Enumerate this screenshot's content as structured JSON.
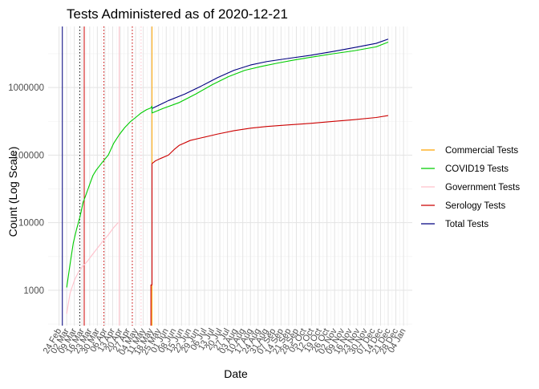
{
  "chart_data": {
    "type": "line",
    "title": "Tests Administered as of 2020-12-21",
    "xlabel": "Date",
    "ylabel": "Count (Log Scale)",
    "y_scale": "log10",
    "ylim": [
      300,
      8000000
    ],
    "y_ticks": [
      {
        "value": 1000,
        "label": "1000"
      },
      {
        "value": 10000,
        "label": "10000"
      },
      {
        "value": 100000,
        "label": "100000"
      },
      {
        "value": 1000000,
        "label": "1000000"
      }
    ],
    "x_range_days": [
      -10,
      323
    ],
    "x_ticks": [
      {
        "day": 0,
        "label": "24 Feb"
      },
      {
        "day": 7,
        "label": "02 Mar"
      },
      {
        "day": 14,
        "label": "09 Mar"
      },
      {
        "day": 21,
        "label": "16 Mar"
      },
      {
        "day": 28,
        "label": "23 Mar"
      },
      {
        "day": 35,
        "label": "30 Mar"
      },
      {
        "day": 42,
        "label": "06 Apr"
      },
      {
        "day": 49,
        "label": "13 Apr"
      },
      {
        "day": 56,
        "label": "20 Apr"
      },
      {
        "day": 63,
        "label": "27 Apr"
      },
      {
        "day": 70,
        "label": "04 May"
      },
      {
        "day": 77,
        "label": "11 May"
      },
      {
        "day": 84,
        "label": "18 May"
      },
      {
        "day": 91,
        "label": "25 May"
      },
      {
        "day": 98,
        "label": "01 Jun"
      },
      {
        "day": 105,
        "label": "08 Jun"
      },
      {
        "day": 112,
        "label": "15 Jun"
      },
      {
        "day": 119,
        "label": "22 Jun"
      },
      {
        "day": 126,
        "label": "29 Jun"
      },
      {
        "day": 133,
        "label": "06 Jul"
      },
      {
        "day": 140,
        "label": "13 Jul"
      },
      {
        "day": 147,
        "label": "20 Jul"
      },
      {
        "day": 154,
        "label": "27 Jul"
      },
      {
        "day": 161,
        "label": "03 Aug"
      },
      {
        "day": 168,
        "label": "10 Aug"
      },
      {
        "day": 175,
        "label": "17 Aug"
      },
      {
        "day": 182,
        "label": "24 Aug"
      },
      {
        "day": 189,
        "label": "31 Aug"
      },
      {
        "day": 196,
        "label": "07 Sep"
      },
      {
        "day": 203,
        "label": "14 Sep"
      },
      {
        "day": 210,
        "label": "21 Sep"
      },
      {
        "day": 217,
        "label": "28 Sep"
      },
      {
        "day": 224,
        "label": "05 Oct"
      },
      {
        "day": 231,
        "label": "12 Oct"
      },
      {
        "day": 238,
        "label": "19 Oct"
      },
      {
        "day": 245,
        "label": "26 Oct"
      },
      {
        "day": 252,
        "label": "02 Nov"
      },
      {
        "day": 259,
        "label": "09 Nov"
      },
      {
        "day": 266,
        "label": "16 Nov"
      },
      {
        "day": 273,
        "label": "23 Nov"
      },
      {
        "day": 280,
        "label": "30 Nov"
      },
      {
        "day": 287,
        "label": "07 Dec"
      },
      {
        "day": 294,
        "label": "14 Dec"
      },
      {
        "day": 301,
        "label": "21 Dec"
      },
      {
        "day": 308,
        "label": "28 Dec"
      },
      {
        "day": 315,
        "label": "04 Jan"
      }
    ],
    "legend_position": "right",
    "legend": [
      {
        "name": "Commercial Tests",
        "color": "#ffa500"
      },
      {
        "name": "COVID19 Tests",
        "color": "#00cc00"
      },
      {
        "name": "Government Tests",
        "color": "#ffc0cb"
      },
      {
        "name": "Serology Tests",
        "color": "#cc0000"
      },
      {
        "name": "Total Tests",
        "color": "#000080"
      }
    ],
    "reference_lines": [
      {
        "day": 3,
        "color": "#000080",
        "style": "solid"
      },
      {
        "day": 19,
        "color": "#000000",
        "style": "dotted"
      },
      {
        "day": 23,
        "color": "#cc0000",
        "style": "solid"
      },
      {
        "day": 41,
        "color": "#cc0000",
        "style": "dotted"
      },
      {
        "day": 55,
        "color": "#ffc0cb",
        "style": "solid"
      },
      {
        "day": 67,
        "color": "#cc0000",
        "style": "dotted"
      },
      {
        "day": 75,
        "color": "#ffc0cb",
        "style": "dotted"
      },
      {
        "day": 85,
        "color": "#ffa500",
        "style": "solid"
      }
    ],
    "series": [
      {
        "name": "Total Tests",
        "color": "#000080",
        "points": [
          [
            85,
            490000
          ],
          [
            100,
            640000
          ],
          [
            115,
            800000
          ],
          [
            130,
            1050000
          ],
          [
            145,
            1400000
          ],
          [
            160,
            1800000
          ],
          [
            175,
            2150000
          ],
          [
            190,
            2420000
          ],
          [
            210,
            2700000
          ],
          [
            230,
            3000000
          ],
          [
            250,
            3400000
          ],
          [
            270,
            3900000
          ],
          [
            290,
            4500000
          ],
          [
            301,
            5200000
          ]
        ]
      },
      {
        "name": "COVID19 Tests",
        "color": "#00cc00",
        "points": [
          [
            7,
            1100
          ],
          [
            10,
            2400
          ],
          [
            13,
            5000
          ],
          [
            16,
            8000
          ],
          [
            19,
            12000
          ],
          [
            22,
            20000
          ],
          [
            25,
            27000
          ],
          [
            28,
            37000
          ],
          [
            31,
            50000
          ],
          [
            34,
            60000
          ],
          [
            40,
            80000
          ],
          [
            45,
            100000
          ],
          [
            50,
            150000
          ],
          [
            55,
            200000
          ],
          [
            60,
            255000
          ],
          [
            65,
            310000
          ],
          [
            70,
            360000
          ],
          [
            75,
            420000
          ],
          [
            80,
            470000
          ],
          [
            84,
            500000
          ],
          [
            85,
            530000
          ],
          [
            85,
            420000
          ],
          [
            95,
            490000
          ],
          [
            110,
            600000
          ],
          [
            125,
            800000
          ],
          [
            140,
            1100000
          ],
          [
            155,
            1450000
          ],
          [
            170,
            1800000
          ],
          [
            185,
            2050000
          ],
          [
            200,
            2300000
          ],
          [
            215,
            2550000
          ],
          [
            230,
            2800000
          ],
          [
            250,
            3150000
          ],
          [
            270,
            3500000
          ],
          [
            290,
            4000000
          ],
          [
            301,
            4700000
          ]
        ]
      },
      {
        "name": "Government Tests",
        "color": "#ffc0cb",
        "points": [
          [
            7,
            450
          ],
          [
            10,
            900
          ],
          [
            14,
            1400
          ],
          [
            18,
            1900
          ],
          [
            22,
            2300
          ],
          [
            26,
            2700
          ],
          [
            30,
            3300
          ],
          [
            35,
            4200
          ],
          [
            40,
            5300
          ],
          [
            45,
            6600
          ],
          [
            50,
            8500
          ],
          [
            54,
            10000
          ]
        ]
      },
      {
        "name": "Serology Tests",
        "color": "#cc0000",
        "points": [
          [
            84,
            300
          ],
          [
            84,
            1200
          ],
          [
            85,
            1200
          ],
          [
            85,
            19000
          ],
          [
            85,
            75000
          ],
          [
            88,
            82000
          ],
          [
            92,
            88000
          ],
          [
            100,
            100000
          ],
          [
            105,
            120000
          ],
          [
            110,
            140000
          ],
          [
            120,
            165000
          ],
          [
            130,
            180000
          ],
          [
            145,
            205000
          ],
          [
            160,
            230000
          ],
          [
            175,
            250000
          ],
          [
            190,
            265000
          ],
          [
            210,
            280000
          ],
          [
            230,
            295000
          ],
          [
            250,
            315000
          ],
          [
            270,
            335000
          ],
          [
            290,
            360000
          ],
          [
            301,
            385000
          ]
        ]
      }
    ]
  }
}
